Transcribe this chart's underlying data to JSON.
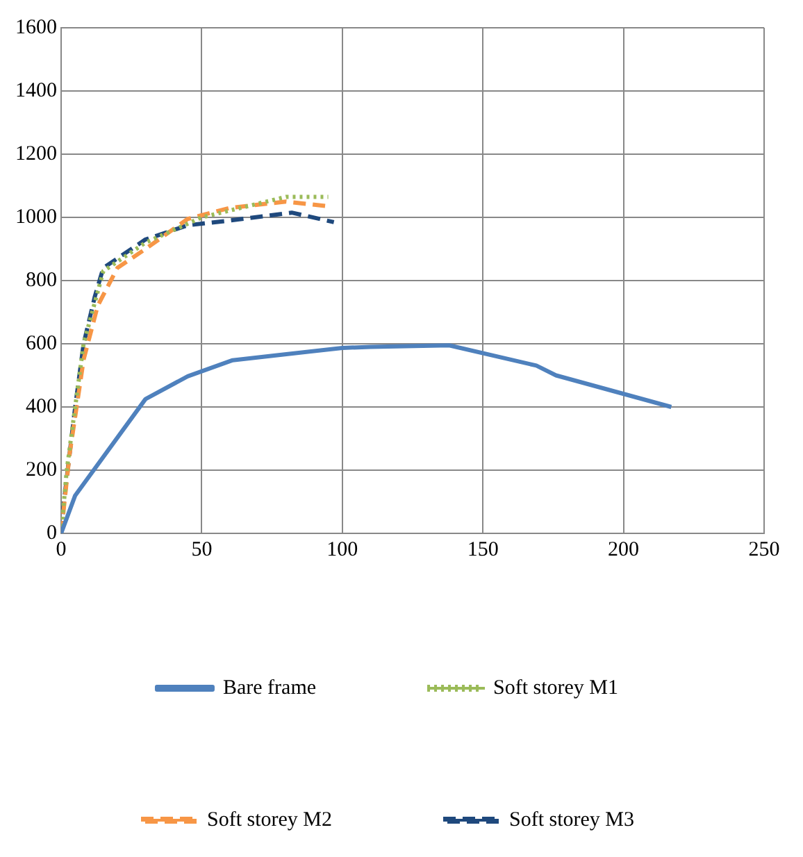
{
  "chart_data": {
    "type": "line",
    "xlim": [
      0,
      250
    ],
    "xticks": [
      0,
      50,
      100,
      150,
      200,
      250
    ],
    "ylim": [
      0,
      1600
    ],
    "yticks": [
      0,
      200,
      400,
      600,
      800,
      1000,
      1200,
      1400,
      1600
    ],
    "grid": true,
    "legend": "bottom",
    "marker": "none",
    "series": [
      {
        "name": "Bare frame",
        "color": "#4f81bd",
        "line_style": "solid",
        "x": [
          0,
          5,
          30,
          45,
          61,
          100,
          110,
          138,
          169,
          176,
          217
        ],
        "values": [
          0,
          120,
          425,
          497,
          548,
          587,
          590,
          595,
          531,
          500,
          400
        ]
      },
      {
        "name": "Soft storey M1",
        "color": "#9bbb59",
        "line_style": "dotted",
        "x": [
          0,
          2,
          8,
          15,
          30,
          50,
          80,
          95
        ],
        "values": [
          0,
          200,
          600,
          830,
          920,
          1000,
          1065,
          1065
        ]
      },
      {
        "name": "Soft storey M2",
        "color": "#f79646",
        "line_style": "dashed",
        "x": [
          0,
          3,
          8,
          13,
          20,
          30,
          45,
          60,
          80,
          95
        ],
        "values": [
          0,
          250,
          550,
          720,
          840,
          900,
          995,
          1030,
          1050,
          1035
        ]
      },
      {
        "name": "Soft storey M3",
        "color": "#1f497d",
        "line_style": "dashed",
        "x": [
          0,
          1,
          5,
          8,
          12,
          15,
          30,
          45,
          60,
          82,
          97
        ],
        "values": [
          0,
          100,
          400,
          600,
          750,
          840,
          930,
          975,
          990,
          1015,
          985
        ]
      }
    ]
  }
}
